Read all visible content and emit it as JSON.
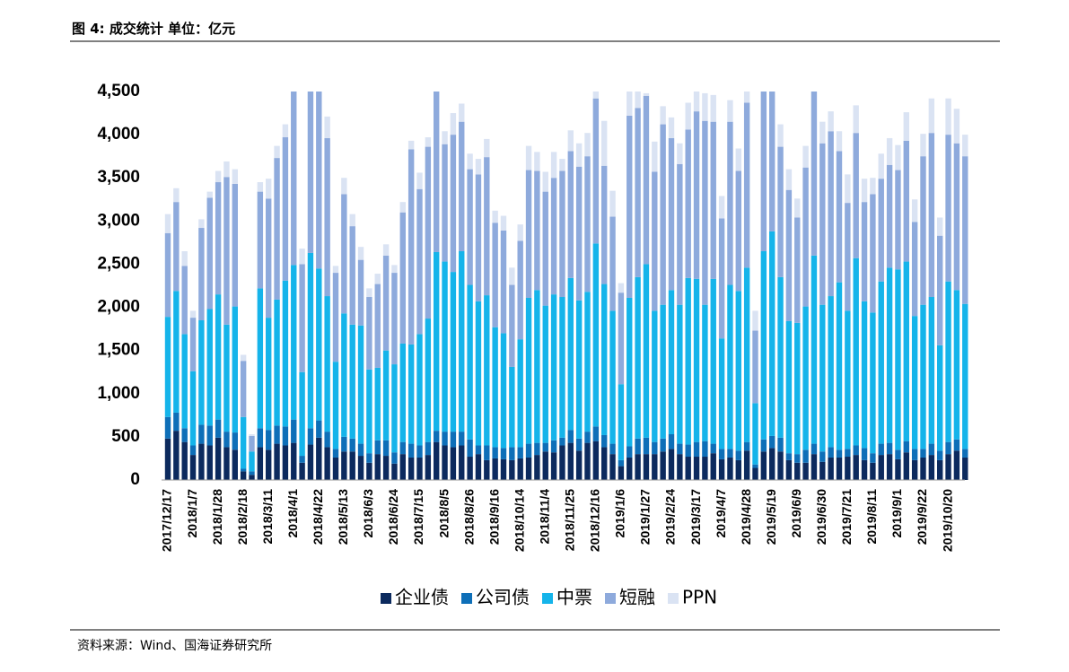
{
  "chart_data": {
    "type": "stacked_bar",
    "title": "图 4:  成交统计  单位：亿元",
    "source": "资料来源：Wind、国海证券研究所",
    "categories": [
      "2017/12/17",
      null,
      null,
      "2018/1/7",
      null,
      null,
      "2018/1/28",
      null,
      null,
      "2018/2/18",
      null,
      null,
      "2018/3/11",
      null,
      null,
      "2018/4/1",
      null,
      null,
      "2018/4/22",
      null,
      null,
      "2018/5/13",
      null,
      null,
      "2018/6/3",
      null,
      null,
      "2018/6/24",
      null,
      null,
      "2018/7/15",
      null,
      null,
      "2018/8/5",
      null,
      null,
      "2018/8/26",
      null,
      null,
      "2018/9/16",
      null,
      null,
      "2018/10/14",
      null,
      null,
      "2018/11/4",
      null,
      null,
      "2018/11/25",
      null,
      null,
      "2018/12/16",
      null,
      null,
      "2019/1/6",
      null,
      null,
      "2019/1/27",
      null,
      null,
      "2019/2/24",
      null,
      null,
      "2019/3/17",
      null,
      null,
      "2019/4/7",
      null,
      null,
      "2019/4/28",
      null,
      null,
      "2019/5/19",
      null,
      null,
      "2019/6/9",
      null,
      null,
      "2019/6/30",
      null,
      null,
      "2019/7/21",
      null,
      null,
      "2019/8/11",
      null,
      null,
      "2019/9/1",
      null,
      null,
      "2019/9/22",
      null,
      null,
      "2019/10/20",
      null,
      null
    ],
    "series": [
      {
        "name": "企业债",
        "color": "#0c2a5e",
        "values": [
          480,
          570,
          440,
          290,
          420,
          400,
          490,
          380,
          350,
          100,
          60,
          380,
          350,
          420,
          400,
          430,
          200,
          410,
          490,
          380,
          260,
          330,
          330,
          280,
          200,
          300,
          280,
          190,
          300,
          260,
          260,
          290,
          440,
          400,
          380,
          400,
          270,
          300,
          230,
          250,
          240,
          230,
          250,
          260,
          290,
          330,
          320,
          400,
          430,
          340,
          430,
          450,
          380,
          300,
          160,
          260,
          300,
          300,
          300,
          330,
          360,
          300,
          270,
          270,
          270,
          310,
          240,
          260,
          230,
          340,
          140,
          330,
          370,
          330,
          230,
          200,
          200,
          300,
          210,
          260,
          260,
          270,
          290,
          230,
          200,
          290,
          300,
          240,
          320,
          230,
          260,
          290,
          230,
          300,
          340,
          260
        ]
      },
      {
        "name": "公司债",
        "color": "#0e6fb8",
        "values": [
          250,
          210,
          160,
          110,
          220,
          230,
          210,
          180,
          200,
          30,
          40,
          220,
          230,
          210,
          220,
          270,
          80,
          190,
          200,
          180,
          100,
          170,
          150,
          140,
          110,
          160,
          180,
          130,
          140,
          160,
          140,
          150,
          130,
          160,
          180,
          160,
          200,
          100,
          170,
          130,
          130,
          150,
          130,
          160,
          140,
          100,
          140,
          90,
          150,
          140,
          130,
          170,
          140,
          120,
          70,
          130,
          180,
          190,
          140,
          150,
          170,
          120,
          140,
          170,
          180,
          110,
          120,
          100,
          110,
          100,
          40,
          140,
          140,
          160,
          80,
          100,
          150,
          120,
          120,
          120,
          90,
          90,
          110,
          140,
          110,
          130,
          130,
          110,
          130,
          130,
          100,
          130,
          110,
          140,
          130,
          100
        ]
      },
      {
        "name": "中票",
        "color": "#15b4ea",
        "values": [
          1160,
          1410,
          1090,
          860,
          1210,
          1350,
          1450,
          1240,
          1460,
          600,
          230,
          1620,
          1300,
          1460,
          1690,
          1790,
          970,
          2030,
          1760,
          1570,
          1010,
          1430,
          1320,
          1370,
          970,
          840,
          1040,
          1020,
          1140,
          1150,
          1290,
          1430,
          2070,
          1970,
          1850,
          2090,
          1790,
          1670,
          1740,
          1390,
          1330,
          930,
          1250,
          1690,
          1770,
          1590,
          1690,
          1630,
          1760,
          1600,
          1620,
          2120,
          1750,
          1540,
          880,
          1720,
          1870,
          2010,
          1520,
          1550,
          1670,
          1610,
          1930,
          1890,
          1580,
          1910,
          1280,
          1900,
          1850,
          2020,
          710,
          2180,
          2370,
          1860,
          1530,
          1520,
          1660,
          2180,
          1700,
          1750,
          1940,
          1600,
          2170,
          1700,
          1630,
          1880,
          2030,
          2090,
          2080,
          1540,
          1670,
          1700,
          1220,
          1860,
          1730,
          1680
        ]
      },
      {
        "name": "短融",
        "color": "#8eaadc",
        "values": [
          970,
          1030,
          790,
          620,
          1070,
          1290,
          1300,
          1710,
          1420,
          650,
          180,
          1120,
          1380,
          1640,
          1660,
          2010,
          1250,
          1870,
          2050,
          1830,
          1030,
          1380,
          1140,
          760,
          840,
          970,
          1100,
          1060,
          1520,
          2260,
          1680,
          1990,
          1860,
          1360,
          1590,
          1500,
          1340,
          1470,
          1600,
          1210,
          1190,
          950,
          1140,
          1480,
          1380,
          1320,
          1350,
          1460,
          1470,
          1550,
          1570,
          1680,
          1370,
          1090,
          1060,
          2110,
          1960,
          1950,
          1610,
          2090,
          1760,
          1630,
          1720,
          1940,
          2130,
          1820,
          1390,
          1890,
          1390,
          1910,
          840,
          1850,
          1620,
          1510,
          1520,
          1220,
          1610,
          1900,
          1870,
          1910,
          1520,
          1250,
          1450,
          1150,
          1370,
          1190,
          1190,
          1150,
          1400,
          1090,
          1720,
          1900,
          1270,
          1700,
          1700,
          1710
        ]
      },
      {
        "name": "PPN",
        "color": "#dae3f3",
        "values": [
          220,
          160,
          170,
          80,
          100,
          70,
          130,
          180,
          170,
          70,
          20,
          110,
          230,
          140,
          150,
          200,
          180,
          200,
          200,
          250,
          80,
          190,
          140,
          150,
          100,
          120,
          130,
          90,
          120,
          100,
          190,
          110,
          150,
          150,
          250,
          210,
          180,
          180,
          210,
          140,
          170,
          200,
          190,
          280,
          220,
          230,
          300,
          140,
          240,
          270,
          270,
          80,
          520,
          300,
          110,
          280,
          190,
          30,
          350,
          210,
          240,
          240,
          310,
          230,
          320,
          310,
          260,
          250,
          260,
          130,
          230,
          200,
          200,
          260,
          240,
          220,
          250,
          150,
          250,
          230,
          230,
          330,
          320,
          270,
          190,
          290,
          310,
          290,
          330,
          260,
          260,
          400,
          210,
          420,
          400,
          250
        ]
      }
    ],
    "ylim": [
      0,
      4500
    ],
    "yticks": [
      0,
      500,
      {
        "value": 1000,
        "label": "1,000"
      },
      {
        "value": 1500,
        "label": "1,500"
      },
      {
        "value": 2000,
        "label": "2,000"
      },
      {
        "value": 2500,
        "label": "2,500"
      },
      {
        "value": 3000,
        "label": "3,000"
      },
      {
        "value": 3500,
        "label": "3,500"
      },
      {
        "value": 4000,
        "label": "4,000"
      },
      {
        "value": 4500,
        "label": "4,500"
      }
    ],
    "legend": "bottom"
  }
}
